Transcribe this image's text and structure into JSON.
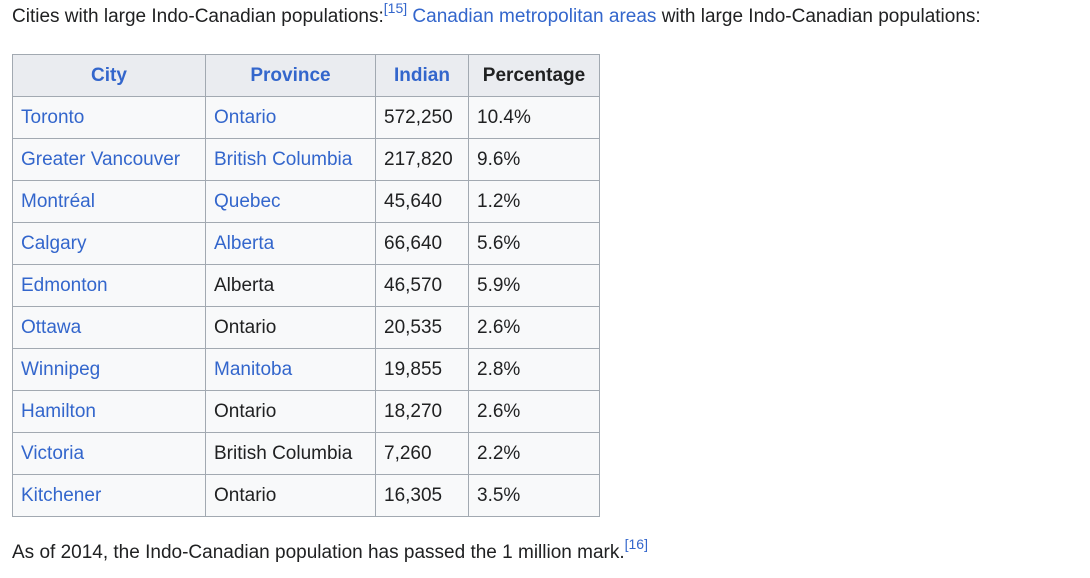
{
  "intro": {
    "text": "Cities with large Indo-Canadian populations:",
    "ref": "[15]",
    "link": "Canadian metropolitan areas",
    "tail": " with large Indo-Canadian populations:"
  },
  "table": {
    "headers": [
      "City",
      "Province",
      "Indian",
      "Percentage"
    ],
    "rows": [
      {
        "city": "Toronto",
        "province": "Ontario",
        "indian": "572,250",
        "pct": "10.4%"
      },
      {
        "city": "Greater Vancouver",
        "province": "British Columbia",
        "indian": "217,820",
        "pct": "9.6%"
      },
      {
        "city": "Montréal",
        "province": "Quebec",
        "indian": "45,640",
        "pct": "1.2%"
      },
      {
        "city": "Calgary",
        "province": "Alberta",
        "indian": "66,640",
        "pct": "5.6%"
      },
      {
        "city": "Edmonton",
        "province": "Alberta",
        "indian": "46,570",
        "pct": "5.9%"
      },
      {
        "city": "Ottawa",
        "province": "Ontario",
        "indian": "20,535",
        "pct": "2.6%"
      },
      {
        "city": "Winnipeg",
        "province": "Manitoba",
        "indian": "19,855",
        "pct": "2.8%"
      },
      {
        "city": "Hamilton",
        "province": "Ontario",
        "indian": "18,270",
        "pct": "2.6%"
      },
      {
        "city": "Victoria",
        "province": "British Columbia",
        "indian": "7,260",
        "pct": "2.2%"
      },
      {
        "city": "Kitchener",
        "province": "Ontario",
        "indian": "16,305",
        "pct": "3.5%"
      }
    ]
  },
  "outro": {
    "text": "As of 2014, the Indo-Canadian population has passed the 1 million mark.",
    "ref": "[16]"
  },
  "colors": {
    "link": "#3366cc",
    "text": "#202122",
    "border": "#a2a9b1",
    "header_bg": "#eaecf0",
    "cell_bg": "#f8f9fa"
  }
}
